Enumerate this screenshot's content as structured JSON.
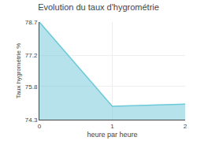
{
  "chart_data": {
    "type": "area",
    "title": "Evolution du taux d'hygrométrie",
    "xlabel": "heure par heure",
    "ylabel": "Taux hygrométrie %",
    "x": [
      0,
      1,
      2
    ],
    "values": [
      78.7,
      74.9,
      75.0
    ],
    "color": "#6dc8d8",
    "xlim": [
      0,
      2
    ],
    "xticks": [
      0,
      1,
      2
    ],
    "ylim": [
      74.3,
      78.7
    ],
    "yticks": [
      74.3,
      75.8,
      77.2,
      78.7
    ],
    "grid": true
  }
}
